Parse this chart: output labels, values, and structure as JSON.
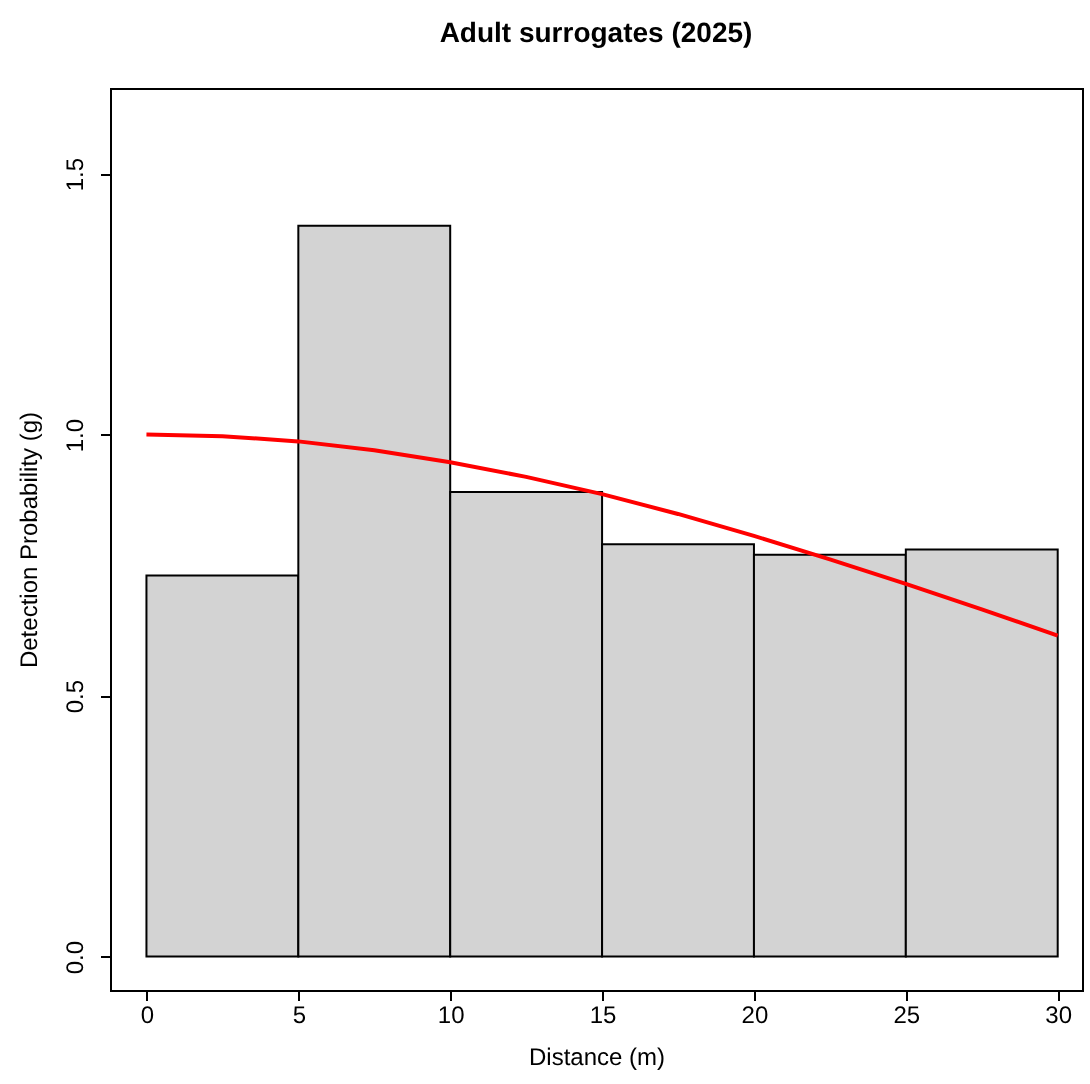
{
  "chart_data": {
    "type": "histogram",
    "title": "Adult surrogates (2025)",
    "xlabel": "Distance (m)",
    "ylabel": "Detection Probability (g)",
    "bins": [
      0,
      5,
      10,
      15,
      20,
      25,
      30
    ],
    "values": [
      0.73,
      1.4,
      0.89,
      0.79,
      0.77,
      0.78
    ],
    "color": "#d3d3d3",
    "series": [
      {
        "type": "line",
        "color": "#ff0000",
        "x": [
          0,
          2.5,
          5,
          7.5,
          10,
          12.5,
          15,
          17.5,
          20,
          22.5,
          25,
          27.5,
          30
        ],
        "values": [
          1.0,
          0.997,
          0.987,
          0.97,
          0.947,
          0.919,
          0.886,
          0.848,
          0.806,
          0.761,
          0.714,
          0.665,
          0.615
        ]
      }
    ],
    "xlim": [
      -1.2,
      30.8
    ],
    "ylim": [
      -0.064,
      1.664
    ],
    "xticks": [
      0,
      5,
      10,
      15,
      20,
      25,
      30
    ],
    "yticks": [
      {
        "value": 0,
        "label": "0.0"
      },
      {
        "value": 0.5,
        "label": "0.5"
      },
      {
        "value": 1,
        "label": "1.0"
      },
      {
        "value": 1.5,
        "label": "1.5"
      }
    ],
    "grid": false
  }
}
